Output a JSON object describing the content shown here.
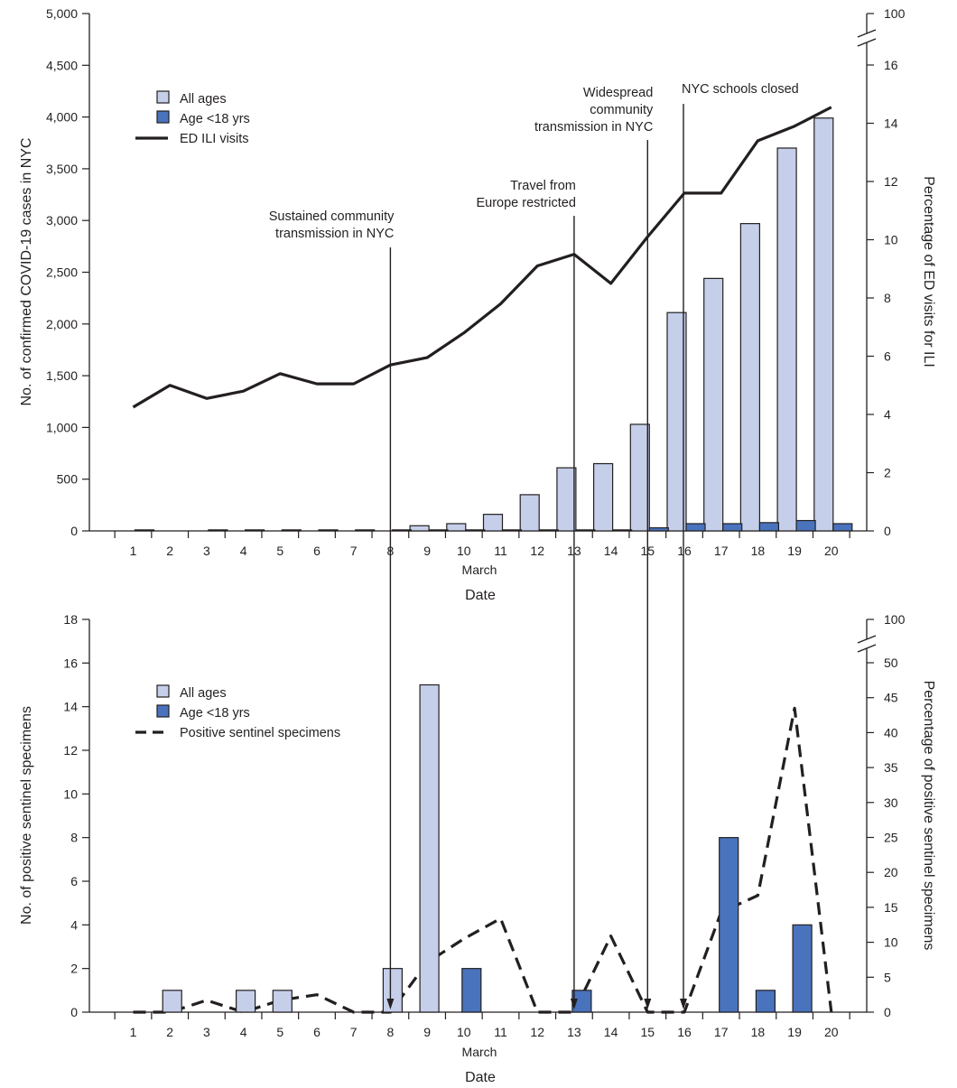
{
  "colors": {
    "all_ages": "#c5cfea",
    "age_lt18": "#4a73bd",
    "stroke": "#231f20"
  },
  "chart_data": [
    {
      "type": "bar",
      "subtype": "bar+line, dual y-axis",
      "x": [
        1,
        2,
        3,
        4,
        5,
        6,
        7,
        8,
        9,
        10,
        11,
        12,
        13,
        14,
        15,
        16,
        17,
        18,
        19,
        20
      ],
      "xlabel_top": "March",
      "xlabel": "Date",
      "ylabel": "No. of confirmed COVID-19 cases in NYC",
      "ylim": [
        0,
        5000
      ],
      "yticks": [
        0,
        500,
        1000,
        1500,
        2000,
        2500,
        3000,
        3500,
        4000,
        4500,
        5000
      ],
      "y2label": "Percentage of ED visits for ILI",
      "y2ticks": [
        0,
        2,
        4,
        6,
        8,
        10,
        12,
        14,
        16,
        100
      ],
      "y2_broken_axis": true,
      "legend": [
        "All ages",
        "Age <18 yrs",
        "ED ILI visits"
      ],
      "legend_position": "top-left",
      "series": [
        {
          "name": "All ages",
          "kind": "bar",
          "values": [
            0,
            0,
            0,
            0,
            0,
            0,
            0,
            0,
            50,
            70,
            160,
            350,
            610,
            650,
            1030,
            2110,
            2440,
            2970,
            3700,
            3990
          ]
        },
        {
          "name": "Age <18 yrs",
          "kind": "bar",
          "values": [
            10,
            0,
            10,
            10,
            10,
            10,
            10,
            10,
            10,
            10,
            10,
            10,
            10,
            10,
            30,
            70,
            70,
            80,
            100,
            70
          ]
        },
        {
          "name": "ED ILI visits",
          "kind": "line",
          "axis": "right",
          "values": [
            4.25,
            5.0,
            4.55,
            4.8,
            5.4,
            5.05,
            5.05,
            5.7,
            5.95,
            6.8,
            7.8,
            9.1,
            9.5,
            8.5,
            10.1,
            11.6,
            11.6,
            13.4,
            13.9,
            14.55
          ]
        }
      ],
      "annotations": [
        {
          "x": 8,
          "lines": [
            "Sustained community",
            "transmission in NYC"
          ]
        },
        {
          "x": 13,
          "lines": [
            "Travel from",
            "Europe restricted"
          ]
        },
        {
          "x": 15,
          "lines": [
            "Widespread",
            "community",
            "transmission in NYC"
          ]
        },
        {
          "x": 16,
          "lines": [
            "NYC schools closed"
          ]
        }
      ]
    },
    {
      "type": "bar",
      "subtype": "bar+line, dual y-axis",
      "x": [
        1,
        2,
        3,
        4,
        5,
        6,
        7,
        8,
        9,
        10,
        11,
        12,
        13,
        14,
        15,
        16,
        17,
        18,
        19,
        20
      ],
      "xlabel_top": "March",
      "xlabel": "Date",
      "ylabel": "No. of positive sentinel specimens",
      "ylim": [
        0,
        18
      ],
      "yticks": [
        0,
        2,
        4,
        6,
        8,
        10,
        12,
        14,
        16,
        18
      ],
      "y2label": "Percentage of positive sentinel specimens",
      "y2ticks": [
        0,
        5,
        10,
        15,
        20,
        25,
        30,
        35,
        40,
        45,
        50,
        100
      ],
      "y2_broken_axis": true,
      "legend": [
        "All ages",
        "Age <18 yrs",
        "Positive sentinel specimens"
      ],
      "legend_position": "top-left",
      "series": [
        {
          "name": "All ages",
          "kind": "bar",
          "values": [
            0,
            1,
            0,
            1,
            1,
            0,
            0,
            2,
            15,
            0,
            0,
            0,
            0,
            0,
            0,
            0,
            0,
            0,
            0,
            0
          ]
        },
        {
          "name": "Age <18 yrs",
          "kind": "bar",
          "values": [
            0,
            0,
            0,
            0,
            0,
            0,
            0,
            0,
            0,
            2,
            0,
            0,
            1,
            0,
            0,
            0,
            8,
            1,
            4,
            0
          ]
        },
        {
          "name": "Positive sentinel specimens",
          "kind": "line",
          "style": "dashed",
          "axis": "right",
          "values": [
            0,
            0,
            1.7,
            0,
            1.7,
            2.5,
            0,
            0,
            7.1,
            10.5,
            13.4,
            0,
            0,
            10.9,
            0,
            0,
            14.3,
            16.7,
            43.5,
            0
          ]
        }
      ]
    }
  ]
}
